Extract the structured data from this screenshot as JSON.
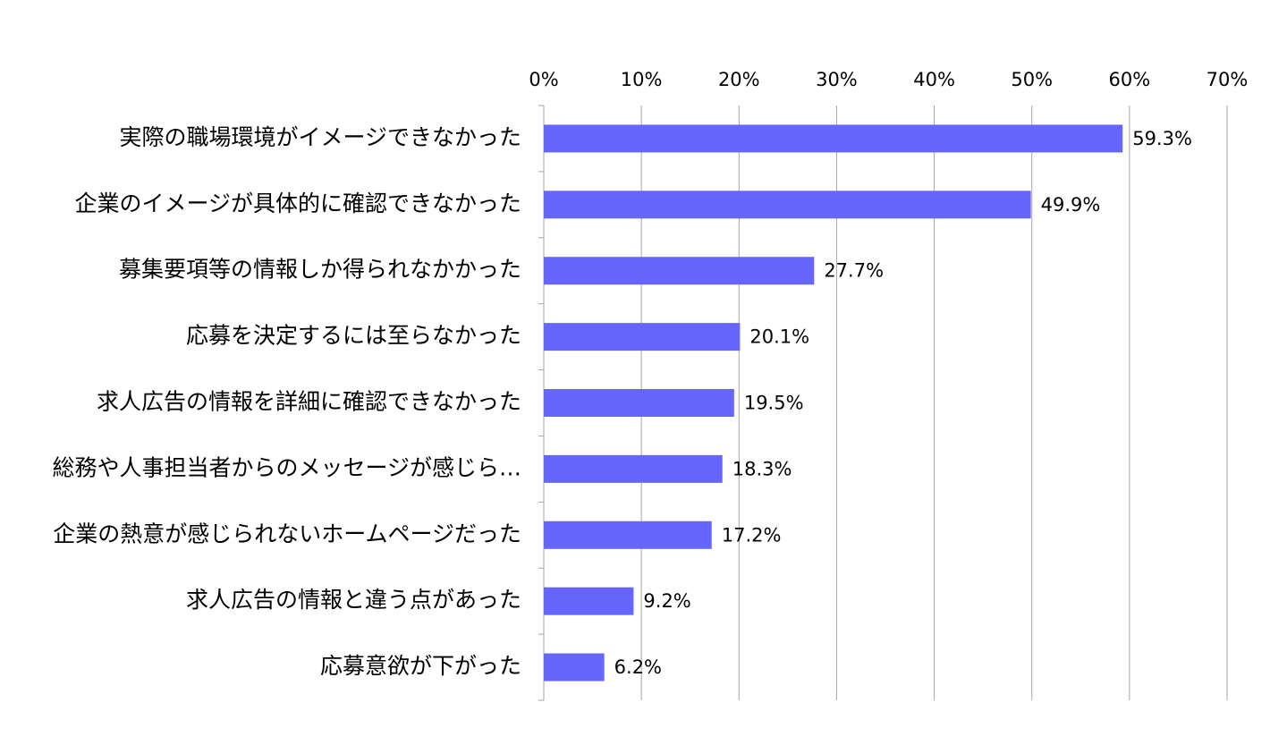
{
  "chart_data": {
    "type": "bar",
    "orientation": "horizontal",
    "title": "",
    "xlabel": "",
    "ylabel": "",
    "xlim": [
      0,
      70
    ],
    "x_ticks": [
      0,
      10,
      20,
      30,
      40,
      50,
      60,
      70
    ],
    "x_tick_labels": [
      "0%",
      "10%",
      "20%",
      "30%",
      "40%",
      "50%",
      "60%",
      "70%"
    ],
    "x_axis_position": "top",
    "grid": true,
    "legend": "none",
    "categories": [
      "実際の職場環境がイメージできなかった",
      "企業のイメージが具体的に確認できなかった",
      "募集要項等の情報しか得られなかかった",
      "応募を決定するには至らなかった",
      "求人広告の情報を詳細に確認できなかった",
      "総務や人事担当者からのメッセージが感じら…",
      "企業の熱意が感じられないホームページだった",
      "求人広告の情報と違う点があった",
      "応募意欲が下がった"
    ],
    "values": [
      59.3,
      49.9,
      27.7,
      20.1,
      19.5,
      18.3,
      17.2,
      9.2,
      6.2
    ],
    "value_labels": [
      "59.3%",
      "49.9%",
      "27.7%",
      "20.1%",
      "19.5%",
      "18.3%",
      "17.2%",
      "9.2%",
      "6.2%"
    ],
    "colors": {
      "bar": "#6666ff",
      "grid": "#a6a6a6",
      "axis": "#a6a6a6",
      "text": "#000000"
    }
  }
}
